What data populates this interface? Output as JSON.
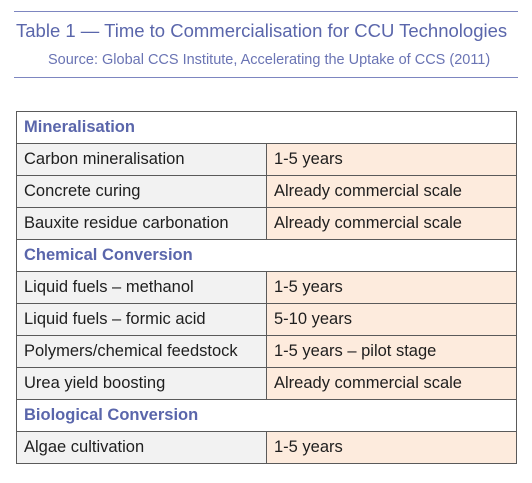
{
  "header": {
    "title": "Table 1 — Time to Commercialisation for CCU Technologies",
    "source": "Source: Global CCS Institute, Accelerating the Uptake of CCS (2011)"
  },
  "table": {
    "sections": [
      {
        "category": "Mineralisation",
        "rows": [
          {
            "technology": "Carbon mineralisation",
            "time": "1-5 years"
          },
          {
            "technology": "Concrete curing",
            "time": "Already commercial scale"
          },
          {
            "technology": "Bauxite residue carbonation",
            "time": "Already commercial scale"
          }
        ]
      },
      {
        "category": "Chemical Conversion",
        "rows": [
          {
            "technology": "Liquid fuels – methanol",
            "time": "1-5 years"
          },
          {
            "technology": "Liquid fuels – formic acid",
            "time": "5-10 years"
          },
          {
            "technology": "Polymers/chemical feedstock",
            "time": "1-5 years – pilot stage"
          },
          {
            "technology": "Urea yield boosting",
            "time": "Already commercial scale"
          }
        ]
      },
      {
        "category": "Biological Conversion",
        "rows": [
          {
            "technology": "Algae cultivation",
            "time": "1-5 years"
          }
        ]
      }
    ]
  },
  "colors": {
    "title_blue": "#5a66ab",
    "category_blue": "#5a66ab",
    "technology_cell_bg": "#f2f2f2",
    "time_cell_bg": "#fdebdd",
    "border": "#5a5a5a"
  }
}
